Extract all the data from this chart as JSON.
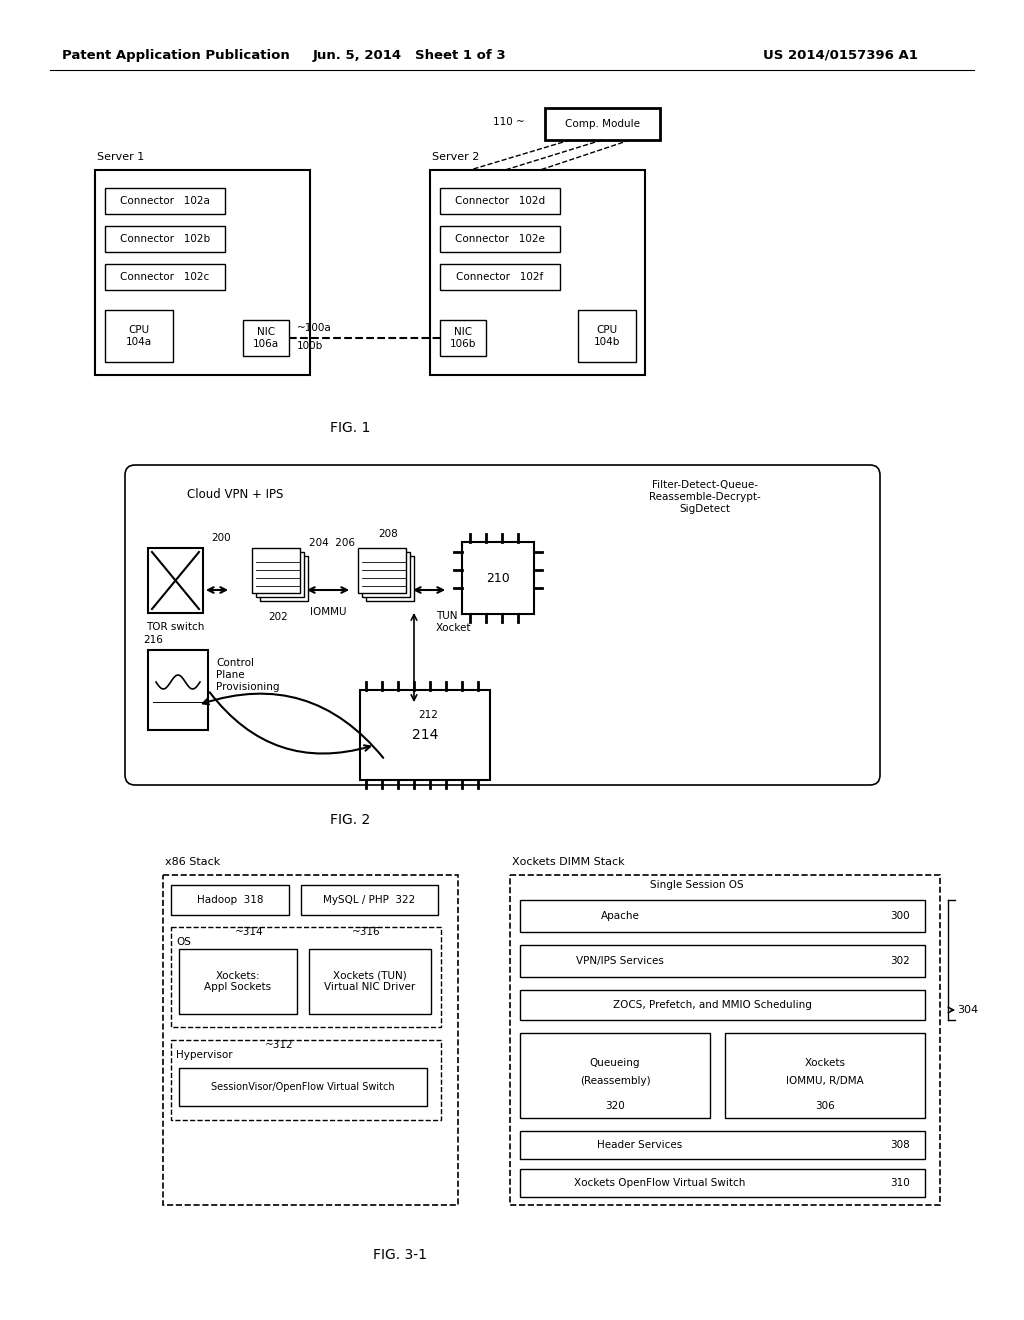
{
  "header_left": "Patent Application Publication",
  "header_mid": "Jun. 5, 2014   Sheet 1 of 3",
  "header_right": "US 2014/0157396 A1",
  "fig1_caption": "FIG. 1",
  "fig2_caption": "FIG. 2",
  "fig3_caption": "FIG. 3-1",
  "background_color": "#ffffff"
}
